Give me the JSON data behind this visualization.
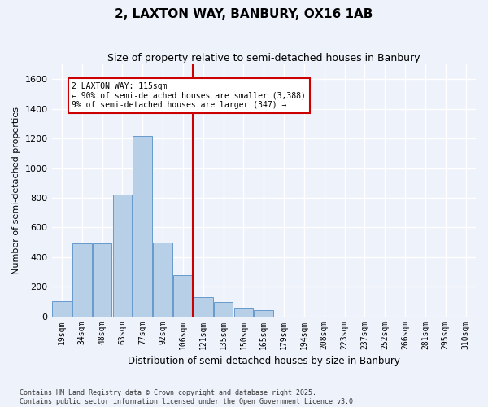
{
  "title": "2, LAXTON WAY, BANBURY, OX16 1AB",
  "subtitle": "Size of property relative to semi-detached houses in Banbury",
  "xlabel": "Distribution of semi-detached houses by size in Banbury",
  "ylabel": "Number of semi-detached properties",
  "bins": [
    "19sqm",
    "34sqm",
    "48sqm",
    "63sqm",
    "77sqm",
    "92sqm",
    "106sqm",
    "121sqm",
    "135sqm",
    "150sqm",
    "165sqm",
    "179sqm",
    "194sqm",
    "208sqm",
    "223sqm",
    "237sqm",
    "252sqm",
    "266sqm",
    "281sqm",
    "295sqm",
    "310sqm"
  ],
  "values": [
    100,
    490,
    490,
    820,
    1220,
    500,
    280,
    130,
    95,
    60,
    40,
    0,
    0,
    0,
    0,
    0,
    0,
    0,
    0,
    0,
    0
  ],
  "bar_color": "#b8cfe8",
  "bar_edge_color": "#6699cc",
  "vline_x": 6.5,
  "vline_color": "#cc0000",
  "annotation_text": "2 LAXTON WAY: 115sqm\n← 90% of semi-detached houses are smaller (3,388)\n9% of semi-detached houses are larger (347) →",
  "annotation_box_color": "#ffffff",
  "annotation_box_edge": "#cc0000",
  "ylim": [
    0,
    1700
  ],
  "yticks": [
    0,
    200,
    400,
    600,
    800,
    1000,
    1200,
    1400,
    1600
  ],
  "footer": "Contains HM Land Registry data © Crown copyright and database right 2025.\nContains public sector information licensed under the Open Government Licence v3.0.",
  "bg_color": "#eef2fb",
  "grid_color": "#ffffff"
}
